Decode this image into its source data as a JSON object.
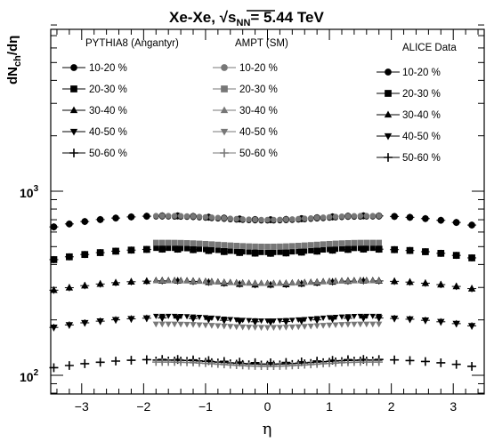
{
  "chart_data": {
    "type": "scatter",
    "title": {
      "prefix": "Xe-Xe, ",
      "sqrt": "√",
      "s": "s",
      "subscript": "NN",
      "suffix": "= 5.44 TeV"
    },
    "xlabel": "η",
    "ylabel": {
      "main": "dN",
      "sub": "ch",
      "tail": "/dη"
    },
    "xlim": [
      -3.5,
      3.5
    ],
    "ylim": [
      80,
      8000
    ],
    "yscale": "log",
    "grid": false,
    "x_ticks": [
      -3,
      -2,
      -1,
      0,
      1,
      2,
      3
    ],
    "y_tick_labels": [
      {
        "value": 100,
        "base": "10",
        "exp": "2"
      },
      {
        "value": 1000,
        "base": "10",
        "exp": "3"
      }
    ],
    "legend_groups": [
      {
        "name": "PYTHIA8 (Angantyr)",
        "entries": [
          "10-20 %",
          "20-30 %",
          "30-40 %",
          "40-50 %",
          "50-60 %"
        ],
        "color": "#000000"
      },
      {
        "name": "AMPT (SM)",
        "entries": [
          "10-20 %",
          "20-30 %",
          "30-40 %",
          "40-50 %",
          "50-60 %"
        ],
        "color": "#666666"
      },
      {
        "name": "ALICE Data",
        "entries": [
          "10-20 %",
          "20-30 %",
          "30-40 %",
          "40-50 %",
          "50-60 %"
        ],
        "color": "#000000"
      }
    ],
    "markers": [
      "circle",
      "square",
      "triangle-up",
      "triangle-down",
      "plus"
    ],
    "series": [
      {
        "name": "ALICE Data 10-20 %",
        "marker": "circle",
        "x_range": [
          -3.45,
          3.45
        ],
        "y": {
          "center": 700,
          "mid": 735,
          "edge": 640
        }
      },
      {
        "name": "ALICE Data 20-30 %",
        "marker": "square",
        "x_range": [
          -3.45,
          3.45
        ],
        "y": {
          "center": 460,
          "mid": 485,
          "edge": 425
        }
      },
      {
        "name": "ALICE Data 30-40 %",
        "marker": "triangle-up",
        "x_range": [
          -3.45,
          3.45
        ],
        "y": {
          "center": 310,
          "mid": 326,
          "edge": 290
        }
      },
      {
        "name": "ALICE Data 40-50 %",
        "marker": "triangle-down",
        "x_range": [
          -3.45,
          3.45
        ],
        "y": {
          "center": 195,
          "mid": 205,
          "edge": 182
        }
      },
      {
        "name": "ALICE Data 50-60 %",
        "marker": "plus",
        "x_range": [
          -3.45,
          3.45
        ],
        "y": {
          "center": 117,
          "mid": 122,
          "edge": 110
        }
      },
      {
        "name": "PYTHIA8 (Angantyr) 10-20 %",
        "marker": "circle",
        "x_range": [
          -1.8,
          1.8
        ],
        "y": {
          "center": 690,
          "mid": 725
        }
      },
      {
        "name": "PYTHIA8 (Angantyr) 20-30 %",
        "marker": "square",
        "x_range": [
          -1.8,
          1.8
        ],
        "y": {
          "center": 465,
          "mid": 490
        }
      },
      {
        "name": "PYTHIA8 (Angantyr) 30-40 %",
        "marker": "triangle-up",
        "x_range": [
          -1.8,
          1.8
        ],
        "y": {
          "center": 318,
          "mid": 330
        }
      },
      {
        "name": "PYTHIA8 (Angantyr) 40-50 %",
        "marker": "triangle-down",
        "x_range": [
          -1.8,
          1.8
        ],
        "y": {
          "center": 198,
          "mid": 210
        }
      },
      {
        "name": "PYTHIA8 (Angantyr) 50-60 %",
        "marker": "plus",
        "x_range": [
          -1.8,
          1.8
        ],
        "y": {
          "center": 115,
          "mid": 121
        }
      },
      {
        "name": "AMPT (SM) 10-20 %",
        "marker": "circle",
        "x_range": [
          -1.8,
          1.8
        ],
        "y": {
          "center": 700,
          "mid": 735
        }
      },
      {
        "name": "AMPT (SM) 20-30 %",
        "marker": "square",
        "x_range": [
          -1.8,
          1.8
        ],
        "y": {
          "center": 500,
          "mid": 525
        }
      },
      {
        "name": "AMPT (SM) 30-40 %",
        "marker": "triangle-up",
        "x_range": [
          -1.8,
          1.8
        ],
        "y": {
          "center": 315,
          "mid": 326
        }
      },
      {
        "name": "AMPT (SM) 40-50 %",
        "marker": "triangle-down",
        "x_range": [
          -1.8,
          1.8
        ],
        "y": {
          "center": 182,
          "mid": 190
        }
      },
      {
        "name": "AMPT (SM) 50-60 %",
        "marker": "plus",
        "x_range": [
          -1.8,
          1.8
        ],
        "y": {
          "center": 112,
          "mid": 118
        }
      }
    ]
  }
}
